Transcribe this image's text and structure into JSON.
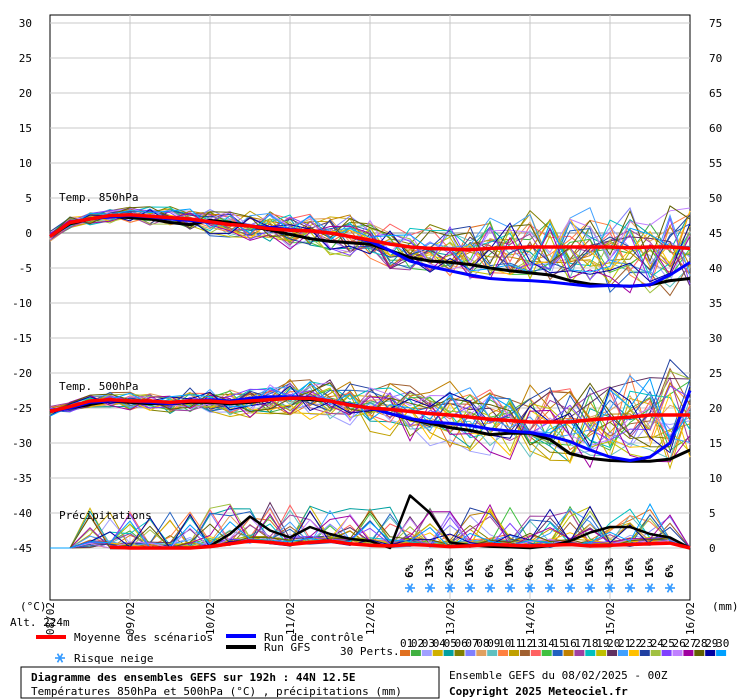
{
  "chart_data": {
    "type": "line",
    "title": "Diagramme des ensembles GEFS sur 192h : 44N 12.5E",
    "subtitle": "Températures 850hPa et 500hPa (°C) , précipitations (mm)",
    "run_label": "Ensemble GEFS du 08/02/2025 - 00Z",
    "copyright": "Copyright 2025 Meteociel.fr",
    "left_axis": {
      "label": "(°C)",
      "ticks": [
        30,
        25,
        20,
        15,
        10,
        5,
        0,
        -5,
        -10,
        -15,
        -20,
        -25,
        -30,
        -35,
        -40,
        -45
      ],
      "range": [
        -45,
        30
      ]
    },
    "right_axis": {
      "label": "(mm)",
      "ticks": [
        75,
        70,
        65,
        60,
        55,
        50,
        45,
        40,
        35,
        30,
        25,
        20,
        15,
        10,
        5,
        0
      ],
      "range": [
        0,
        75
      ]
    },
    "x_dates": [
      "09/02",
      "10/02",
      "11/02",
      "12/02",
      "13/02",
      "14/02",
      "15/02",
      "16/02"
    ],
    "x_first_date": "08/02",
    "altitude_label": "Alt. 224m",
    "panel_labels": {
      "t850": "Temp. 850hPa",
      "t500": "Temp. 500hPa",
      "precip": "Précipitations"
    },
    "legend": {
      "mean": {
        "label": "Moyenne des scénarios",
        "color": "#ff0000"
      },
      "control": {
        "label": "Run de contrôle",
        "color": "#0000ff"
      },
      "gfs": {
        "label": "Run GFS",
        "color": "#000000"
      },
      "snow": {
        "label": "Risque neige",
        "icon": "snowflake-icon",
        "color": "#3399ff"
      }
    },
    "perturbations": {
      "label": "30 Perts.",
      "ids": [
        "01",
        "02",
        "03",
        "04",
        "05",
        "06",
        "07",
        "08",
        "09",
        "10",
        "11",
        "12",
        "13",
        "14",
        "15",
        "16",
        "17",
        "18",
        "19",
        "20",
        "21",
        "22",
        "23",
        "24",
        "25",
        "26",
        "27",
        "28",
        "29",
        "30"
      ],
      "colors": [
        "#e07020",
        "#40b040",
        "#a0a0ff",
        "#d0b000",
        "#00a0a0",
        "#808000",
        "#8080ff",
        "#e0a060",
        "#60c0c0",
        "#ff8040",
        "#c0a000",
        "#a06030",
        "#ff6060",
        "#40c040",
        "#2060c0",
        "#c08000",
        "#a040a0",
        "#00c0c0",
        "#c0c000",
        "#603060",
        "#40a0ff",
        "#ffc000",
        "#2040a0",
        "#a0c040",
        "#8040ff",
        "#c080ff",
        "#a000a0",
        "#606000",
        "#0000a0",
        "#00a0ff"
      ]
    },
    "snow_risk": [
      {
        "x": 108,
        "pct": "6%"
      },
      {
        "x": 114,
        "pct": "13%"
      },
      {
        "x": 120,
        "pct": "26%"
      },
      {
        "x": 126,
        "pct": "16%"
      },
      {
        "x": 132,
        "pct": "6%"
      },
      {
        "x": 138,
        "pct": "10%"
      },
      {
        "x": 144,
        "pct": "6%"
      },
      {
        "x": 150,
        "pct": "10%"
      },
      {
        "x": 156,
        "pct": "16%"
      },
      {
        "x": 162,
        "pct": "16%"
      },
      {
        "x": 168,
        "pct": "13%"
      },
      {
        "x": 174,
        "pct": "16%"
      },
      {
        "x": 180,
        "pct": "16%"
      },
      {
        "x": 186,
        "pct": "6%"
      }
    ],
    "x_hours": [
      0,
      6,
      12,
      18,
      24,
      30,
      36,
      42,
      48,
      54,
      60,
      66,
      72,
      78,
      84,
      90,
      96,
      102,
      108,
      114,
      120,
      126,
      132,
      138,
      144,
      150,
      156,
      162,
      168,
      174,
      180,
      186,
      192
    ],
    "series": {
      "t850_mean": [
        -0.5,
        1.5,
        2,
        2.5,
        2.6,
        2.4,
        2.2,
        2,
        1.6,
        1.2,
        1,
        0.6,
        0.4,
        0.3,
        0,
        -0.5,
        -1,
        -1.6,
        -2,
        -2.2,
        -2.3,
        -2.4,
        -2.2,
        -2.1,
        -2,
        -2,
        -2,
        -2,
        -2,
        -2.1,
        -2,
        -2,
        -2.2
      ],
      "t850_control": [
        -0.5,
        1.5,
        2,
        2.3,
        2.5,
        2.3,
        2,
        1.8,
        1.5,
        1.2,
        1,
        0.8,
        0.5,
        0.3,
        0,
        -0.5,
        -1.2,
        -2.5,
        -4,
        -4.8,
        -5.4,
        -6,
        -6.5,
        -6.7,
        -6.8,
        -7,
        -7.3,
        -7.6,
        -7.5,
        -7.6,
        -7.4,
        -6,
        -4.2
      ],
      "t850_gfs": [
        -0.5,
        1.3,
        2,
        2.4,
        2.2,
        2,
        1.5,
        1.2,
        1.8,
        1.5,
        1,
        0.4,
        -0.2,
        -0.8,
        -1.2,
        -1.4,
        -1.6,
        -2.5,
        -3.5,
        -4,
        -4.2,
        -4.5,
        -5,
        -5.4,
        -5.7,
        -6,
        -6.8,
        -7.3,
        -7.5,
        -7.6,
        -7.4,
        -6.8,
        -6.5
      ],
      "t500_mean": [
        -25.5,
        -24.8,
        -24,
        -23.8,
        -24,
        -24,
        -24.2,
        -24,
        -24,
        -24.2,
        -24,
        -23.8,
        -23.6,
        -23.6,
        -24,
        -24.6,
        -25,
        -25.2,
        -25.5,
        -25.8,
        -26,
        -26.3,
        -26.6,
        -26.8,
        -27,
        -27,
        -27,
        -26.7,
        -26.5,
        -26.3,
        -26,
        -26,
        -26
      ],
      "t500_control": [
        -25.5,
        -25,
        -24.2,
        -24,
        -24,
        -24.2,
        -24.4,
        -24,
        -23.8,
        -24,
        -23.6,
        -23.4,
        -23.4,
        -23.5,
        -24,
        -24.5,
        -25,
        -25.8,
        -26.5,
        -27,
        -27.2,
        -27.5,
        -28,
        -28.3,
        -28.5,
        -29,
        -29.8,
        -31,
        -32,
        -32.5,
        -32,
        -30,
        -22.5
      ],
      "t500_gfs": [
        -25.5,
        -25,
        -24.5,
        -24,
        -24.2,
        -24.4,
        -24.4,
        -24.2,
        -24.2,
        -24.4,
        -24.2,
        -23.8,
        -23.6,
        -23.8,
        -24,
        -24.5,
        -25,
        -25.8,
        -26.6,
        -27.2,
        -27.8,
        -28.2,
        -28.8,
        -28.6,
        -28.6,
        -29.5,
        -31.5,
        -32.2,
        -32.5,
        -32.6,
        -32.6,
        -32.3,
        -31
      ],
      "precip_mean": [
        0,
        0,
        0.3,
        0.1,
        0,
        0,
        0,
        0,
        0.2,
        0.6,
        1,
        0.8,
        0.5,
        0.8,
        1,
        0.6,
        0.4,
        0.3,
        0.5,
        0.4,
        0.2,
        0.3,
        0.5,
        0.4,
        0.3,
        0.4,
        0.5,
        0.3,
        0.4,
        0.5,
        0.6,
        0.7,
        0
      ],
      "precip_gfs": [
        0,
        0,
        0.3,
        0,
        0,
        0,
        0,
        0,
        0.3,
        2,
        4.5,
        2.5,
        1.5,
        3,
        2,
        1.3,
        1,
        0,
        7.5,
        5,
        0.8,
        0.4,
        0.2,
        0.1,
        0,
        0.3,
        1,
        2.2,
        3,
        3,
        2,
        1.5,
        0
      ]
    }
  }
}
